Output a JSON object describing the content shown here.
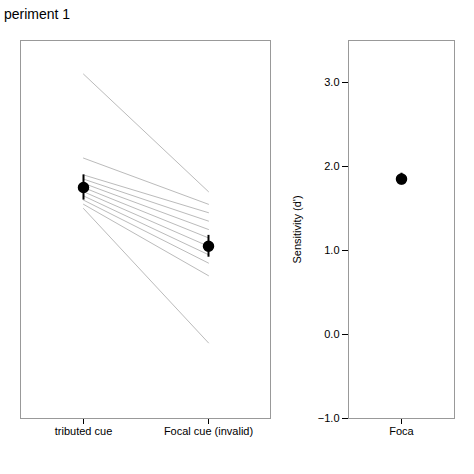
{
  "chart_data": [
    {
      "type": "line",
      "title": "periment 1",
      "categories": [
        "tributed cue",
        "Focal cue (invalid)"
      ],
      "series": [
        {
          "type": "line",
          "color": "#bbbbbb",
          "values": [
            3.1,
            1.7
          ]
        },
        {
          "type": "line",
          "color": "#bbbbbb",
          "values": [
            2.1,
            1.55
          ]
        },
        {
          "type": "line",
          "color": "#bbbbbb",
          "values": [
            1.9,
            1.45
          ]
        },
        {
          "type": "line",
          "color": "#bbbbbb",
          "values": [
            1.85,
            1.35
          ]
        },
        {
          "type": "line",
          "color": "#bbbbbb",
          "values": [
            1.8,
            1.25
          ]
        },
        {
          "type": "line",
          "color": "#bbbbbb",
          "values": [
            1.75,
            1.15
          ]
        },
        {
          "type": "line",
          "color": "#bbbbbb",
          "values": [
            1.7,
            1.05
          ]
        },
        {
          "type": "line",
          "color": "#bbbbbb",
          "values": [
            1.65,
            0.95
          ]
        },
        {
          "type": "line",
          "color": "#bbbbbb",
          "values": [
            1.6,
            0.85
          ]
        },
        {
          "type": "line",
          "color": "#bbbbbb",
          "values": [
            1.55,
            0.7
          ]
        },
        {
          "type": "line",
          "color": "#bbbbbb",
          "values": [
            1.5,
            -0.1
          ]
        },
        {
          "type": "errorbar",
          "color": "#000000",
          "marker": "circle",
          "values": [
            1.75,
            1.05
          ],
          "errors": [
            0.15,
            0.13
          ]
        }
      ],
      "ylim": [
        -1,
        3.5
      ],
      "yticks": [],
      "tick_labels": "x"
    },
    {
      "type": "scatter",
      "categories": [
        "Foca"
      ],
      "series": [
        {
          "type": "errorbar",
          "color": "#000000",
          "marker": "circle",
          "values": [
            1.85
          ],
          "errors": [
            0.07
          ]
        }
      ],
      "ylim": [
        -1,
        3.5
      ],
      "yticks": [
        -1,
        0,
        1,
        2,
        3
      ],
      "ylabel": "Sensitivity (d')"
    }
  ]
}
